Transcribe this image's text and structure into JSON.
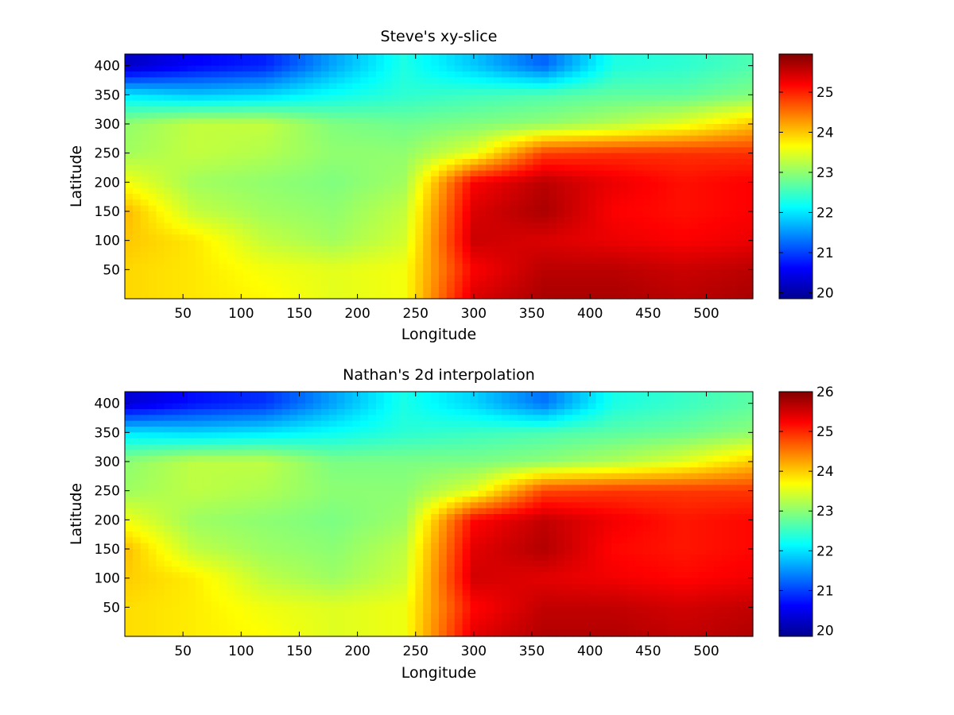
{
  "figure": {
    "background": "#ffffff",
    "colormap": "jet",
    "colormap_stops": [
      "#00008f",
      "#0000ff",
      "#00ffff",
      "#ffff00",
      "#ff0000",
      "#800000"
    ]
  },
  "chart_data": [
    {
      "type": "heatmap",
      "title": "Steve's xy-slice",
      "xlabel": "Longitude",
      "ylabel": "Latitude",
      "xlim": [
        0,
        540
      ],
      "ylim": [
        0,
        420
      ],
      "xticks": [
        50,
        100,
        150,
        200,
        250,
        300,
        350,
        400,
        450,
        500
      ],
      "yticks": [
        50,
        100,
        150,
        200,
        250,
        300,
        350,
        400
      ],
      "colorbar": {
        "clim": [
          19.85,
          25.95
        ],
        "ticks": [
          20,
          21,
          22,
          23,
          24,
          25
        ]
      },
      "field_description": "approximate temperature-like field: blue band near latitude 350-420 in the west, green-yellow interior, large red warm core east of longitude 270 between latitude 0 and 260",
      "sample_grid": {
        "x": [
          0,
          60,
          120,
          180,
          240,
          300,
          360,
          420,
          480,
          540
        ],
        "y": [
          400,
          350,
          300,
          250,
          200,
          150,
          100,
          50,
          0
        ],
        "z": [
          [
            20.2,
            20.6,
            20.8,
            21.6,
            22.3,
            21.8,
            21.2,
            22.3,
            22.4,
            22.6
          ],
          [
            22.0,
            21.8,
            21.9,
            22.2,
            22.4,
            22.5,
            22.6,
            22.7,
            22.7,
            22.9
          ],
          [
            23.0,
            23.3,
            23.3,
            22.9,
            22.8,
            22.9,
            23.0,
            23.2,
            23.5,
            24.0
          ],
          [
            23.1,
            23.3,
            23.2,
            23.0,
            23.0,
            23.5,
            24.8,
            24.9,
            24.9,
            24.9
          ],
          [
            23.6,
            23.1,
            23.0,
            22.9,
            23.1,
            25.2,
            25.6,
            25.3,
            25.1,
            25.2
          ],
          [
            24.1,
            23.3,
            23.1,
            23.0,
            23.3,
            25.4,
            25.7,
            25.2,
            25.1,
            25.2
          ],
          [
            24.0,
            23.8,
            23.3,
            23.1,
            23.4,
            25.5,
            25.4,
            25.3,
            25.2,
            25.3
          ],
          [
            23.9,
            23.8,
            23.6,
            23.5,
            23.6,
            25.2,
            25.6,
            25.6,
            25.5,
            25.6
          ],
          [
            23.9,
            23.8,
            23.7,
            23.5,
            23.6,
            25.4,
            25.7,
            25.7,
            25.6,
            25.7
          ]
        ]
      }
    },
    {
      "type": "heatmap",
      "title": "Nathan's 2d interpolation",
      "xlabel": "Longitude",
      "ylabel": "Latitude",
      "xlim": [
        0,
        540
      ],
      "ylim": [
        0,
        420
      ],
      "xticks": [
        50,
        100,
        150,
        200,
        250,
        300,
        350,
        400,
        450,
        500
      ],
      "yticks": [
        50,
        100,
        150,
        200,
        250,
        300,
        350,
        400
      ],
      "colorbar": {
        "clim": [
          19.85,
          26.0
        ],
        "ticks": [
          20,
          21,
          22,
          23,
          24,
          25,
          26
        ]
      },
      "field_description": "smoothed interpolation of the same field, nearly identical structure",
      "sample_grid": {
        "x": [
          0,
          60,
          120,
          180,
          240,
          300,
          360,
          420,
          480,
          540
        ],
        "y": [
          400,
          350,
          300,
          250,
          200,
          150,
          100,
          50,
          0
        ],
        "z": [
          [
            20.3,
            20.7,
            20.9,
            21.6,
            22.3,
            21.9,
            21.3,
            22.3,
            22.5,
            22.7
          ],
          [
            22.0,
            21.9,
            22.0,
            22.2,
            22.4,
            22.5,
            22.6,
            22.7,
            22.8,
            23.0
          ],
          [
            23.0,
            23.3,
            23.3,
            22.9,
            22.9,
            22.9,
            23.0,
            23.2,
            23.5,
            24.0
          ],
          [
            23.1,
            23.3,
            23.2,
            23.0,
            23.0,
            23.5,
            24.8,
            24.9,
            24.9,
            24.9
          ],
          [
            23.6,
            23.1,
            23.0,
            22.9,
            23.1,
            25.2,
            25.6,
            25.3,
            25.1,
            25.2
          ],
          [
            24.1,
            23.3,
            23.1,
            23.0,
            23.3,
            25.4,
            25.7,
            25.2,
            25.1,
            25.2
          ],
          [
            24.0,
            23.8,
            23.3,
            23.1,
            23.4,
            25.5,
            25.4,
            25.3,
            25.2,
            25.3
          ],
          [
            23.9,
            23.8,
            23.6,
            23.5,
            23.6,
            25.2,
            25.6,
            25.6,
            25.5,
            25.6
          ],
          [
            23.9,
            23.8,
            23.7,
            23.5,
            23.6,
            25.4,
            25.7,
            25.7,
            25.6,
            25.7
          ]
        ]
      }
    }
  ]
}
